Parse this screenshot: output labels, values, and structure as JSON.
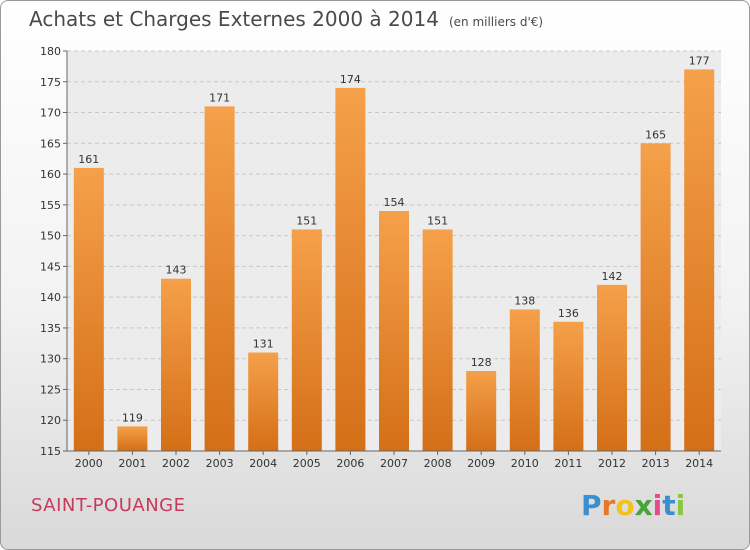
{
  "chart_data": {
    "type": "bar",
    "title": "Achats et Charges Externes 2000 à 2014",
    "subtitle": "(en milliers d'€)",
    "categories": [
      "2000",
      "2001",
      "2002",
      "2003",
      "2004",
      "2005",
      "2006",
      "2007",
      "2008",
      "2009",
      "2010",
      "2011",
      "2012",
      "2013",
      "2014"
    ],
    "values": [
      161,
      119,
      143,
      171,
      131,
      151,
      174,
      154,
      151,
      128,
      138,
      136,
      142,
      165,
      177
    ],
    "ylim": [
      115,
      180
    ],
    "yticks": [
      115,
      120,
      125,
      130,
      135,
      140,
      145,
      150,
      155,
      160,
      165,
      170,
      175,
      180
    ],
    "grid": true,
    "xlabel": "",
    "ylabel": "",
    "bar_color": "#f5a04a",
    "bar_color_dark": "#d46f17"
  },
  "commune": "SAINT-POUANGE",
  "brand": {
    "letters": [
      "P",
      "r",
      "o",
      "x",
      "i",
      "t",
      "i"
    ],
    "colors": [
      "#3a8fd0",
      "#e7772a",
      "#f2c21b",
      "#4aa33a",
      "#e54a8c",
      "#3a8fd0",
      "#8cc63f"
    ]
  },
  "colors": {
    "commune_text": "#c73a5a",
    "title_text": "#4a4a4a"
  }
}
